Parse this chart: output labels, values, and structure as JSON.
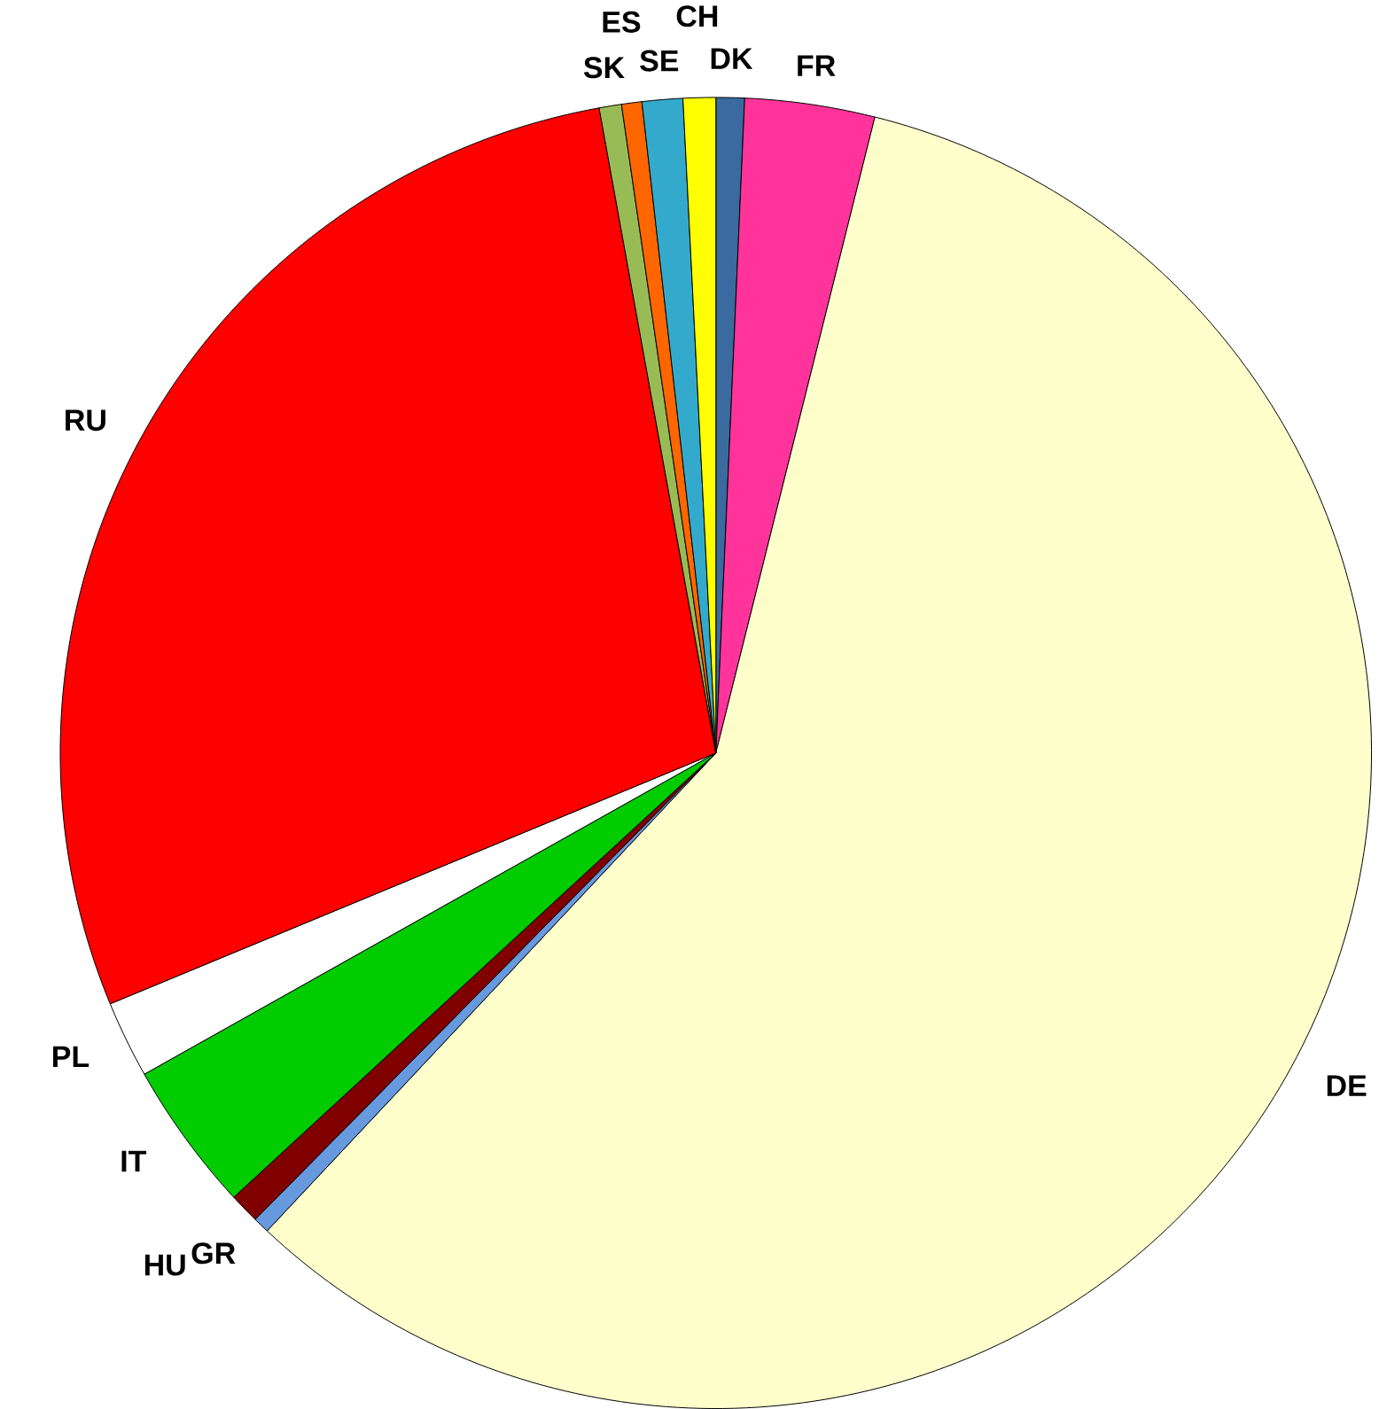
{
  "chart_data": {
    "type": "pie",
    "categories": [
      "DK",
      "FR",
      "DE",
      "GR",
      "HU",
      "IT",
      "PL",
      "RU",
      "SK",
      "ES",
      "SE",
      "CH"
    ],
    "values": [
      0.7,
      3.2,
      58.1,
      0.4,
      0.75,
      3.7,
      1.9,
      28.4,
      0.55,
      0.5,
      1.0,
      0.8
    ],
    "colors": [
      "#3a6aa0",
      "#ff3399",
      "#ffffcc",
      "#6699dd",
      "#800000",
      "#00cc00",
      "#ffffff",
      "#ff0000",
      "#99bb55",
      "#ff6600",
      "#33aacc",
      "#ffff00"
    ]
  }
}
